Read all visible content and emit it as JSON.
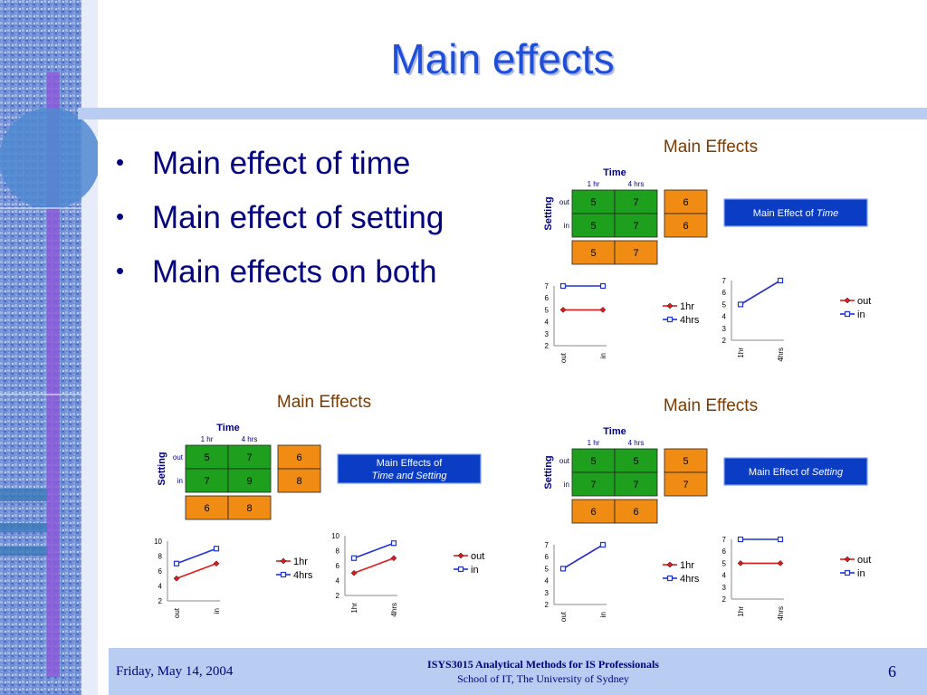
{
  "slide": {
    "title": "Main effects",
    "bullets": [
      "Main effect of time",
      "Main effect of setting",
      "Main effects on both"
    ]
  },
  "colors": {
    "accent_blue": "#1f4fd8",
    "navy": "#000080",
    "cell_green": "#1ea01e",
    "cell_orange": "#f08c14",
    "line_red": "#dd1b1b",
    "line_blue": "#1c32d8",
    "footer_band": "#b9cdf2",
    "banner": "#0a3cc4"
  },
  "panels": [
    {
      "title": "Main Effects",
      "table": {
        "time_label": "Time",
        "setting_label": "Setting",
        "col_labels": [
          "1 hr",
          "4 hrs"
        ],
        "row_labels": [
          "out",
          "in"
        ],
        "cells": [
          [
            "5",
            "7"
          ],
          [
            "5",
            "7"
          ]
        ],
        "row_means": [
          "6",
          "6"
        ],
        "col_means": [
          "5",
          "7"
        ]
      },
      "banner": {
        "text_plain": "Main Effect of ",
        "text_italic": "Time"
      },
      "charts": [
        {
          "type": "line",
          "x": [
            "out",
            "in"
          ],
          "ylim": [
            2,
            7
          ],
          "yticks": [
            2,
            3,
            4,
            5,
            6,
            7
          ],
          "series": [
            {
              "name": "1hr",
              "values": [
                5,
                5
              ],
              "color": "#dd1b1b",
              "marker": "diamond"
            },
            {
              "name": "4hrs",
              "values": [
                7,
                7
              ],
              "color": "#1c32d8",
              "marker": "square"
            }
          ]
        },
        {
          "type": "line",
          "x": [
            "1hr",
            "4hrs"
          ],
          "ylim": [
            2,
            7
          ],
          "yticks": [
            2,
            3,
            4,
            5,
            6,
            7
          ],
          "series": [
            {
              "name": "out",
              "values": [
                5,
                7
              ],
              "color": "#dd1b1b",
              "marker": "diamond"
            },
            {
              "name": "in",
              "values": [
                5,
                7
              ],
              "color": "#1c32d8",
              "marker": "square"
            }
          ]
        }
      ]
    },
    {
      "title": "Main Effects",
      "table": {
        "time_label": "Time",
        "setting_label": "Setting",
        "col_labels": [
          "1 hr",
          "4 hrs"
        ],
        "row_labels": [
          "out",
          "in"
        ],
        "cells": [
          [
            "5",
            "7"
          ],
          [
            "7",
            "9"
          ]
        ],
        "row_means": [
          "6",
          "8"
        ],
        "col_means": [
          "6",
          "8"
        ]
      },
      "banner": {
        "text_plain": "Main Effects of",
        "text_italic": "Time and Setting"
      },
      "charts": [
        {
          "type": "line",
          "x": [
            "out",
            "in"
          ],
          "ylim": [
            2,
            10
          ],
          "yticks": [
            2,
            4,
            6,
            8,
            10
          ],
          "series": [
            {
              "name": "1hr",
              "values": [
                5,
                7
              ],
              "color": "#dd1b1b",
              "marker": "diamond"
            },
            {
              "name": "4hrs",
              "values": [
                7,
                9
              ],
              "color": "#1c32d8",
              "marker": "square"
            }
          ]
        },
        {
          "type": "line",
          "x": [
            "1hr",
            "4hrs"
          ],
          "ylim": [
            2,
            10
          ],
          "yticks": [
            2,
            4,
            6,
            8,
            10
          ],
          "series": [
            {
              "name": "out",
              "values": [
                5,
                7
              ],
              "color": "#dd1b1b",
              "marker": "diamond"
            },
            {
              "name": "in",
              "values": [
                7,
                9
              ],
              "color": "#1c32d8",
              "marker": "square"
            }
          ]
        }
      ]
    },
    {
      "title": "Main Effects",
      "table": {
        "time_label": "Time",
        "setting_label": "Setting",
        "col_labels": [
          "1 hr",
          "4 hrs"
        ],
        "row_labels": [
          "out",
          "in"
        ],
        "cells": [
          [
            "5",
            "5"
          ],
          [
            "7",
            "7"
          ]
        ],
        "row_means": [
          "5",
          "7"
        ],
        "col_means": [
          "6",
          "6"
        ]
      },
      "banner": {
        "text_plain": "Main Effect of ",
        "text_italic": "Setting"
      },
      "charts": [
        {
          "type": "line",
          "x": [
            "out",
            "in"
          ],
          "ylim": [
            2,
            7
          ],
          "yticks": [
            2,
            3,
            4,
            5,
            6,
            7
          ],
          "series": [
            {
              "name": "1hr",
              "values": [
                5,
                7
              ],
              "color": "#dd1b1b",
              "marker": "diamond"
            },
            {
              "name": "4hrs",
              "values": [
                5,
                7
              ],
              "color": "#1c32d8",
              "marker": "square"
            }
          ]
        },
        {
          "type": "line",
          "x": [
            "1hr",
            "4hrs"
          ],
          "ylim": [
            2,
            7
          ],
          "yticks": [
            2,
            3,
            4,
            5,
            6,
            7
          ],
          "series": [
            {
              "name": "out",
              "values": [
                5,
                5
              ],
              "color": "#dd1b1b",
              "marker": "diamond"
            },
            {
              "name": "in",
              "values": [
                7,
                7
              ],
              "color": "#1c32d8",
              "marker": "square"
            }
          ]
        }
      ]
    }
  ],
  "chart_data": [
    {
      "type": "line",
      "x": [
        "out",
        "in"
      ],
      "ylim": [
        2,
        7
      ],
      "series": [
        {
          "name": "1hr",
          "values": [
            5,
            5
          ]
        },
        {
          "name": "4hrs",
          "values": [
            7,
            7
          ]
        }
      ]
    },
    {
      "type": "line",
      "x": [
        "1hr",
        "4hrs"
      ],
      "ylim": [
        2,
        7
      ],
      "series": [
        {
          "name": "out",
          "values": [
            5,
            7
          ]
        },
        {
          "name": "in",
          "values": [
            5,
            7
          ]
        }
      ]
    },
    {
      "type": "line",
      "x": [
        "out",
        "in"
      ],
      "ylim": [
        2,
        10
      ],
      "series": [
        {
          "name": "1hr",
          "values": [
            5,
            7
          ]
        },
        {
          "name": "4hrs",
          "values": [
            7,
            9
          ]
        }
      ]
    },
    {
      "type": "line",
      "x": [
        "1hr",
        "4hrs"
      ],
      "ylim": [
        2,
        10
      ],
      "series": [
        {
          "name": "out",
          "values": [
            5,
            7
          ]
        },
        {
          "name": "in",
          "values": [
            7,
            9
          ]
        }
      ]
    },
    {
      "type": "line",
      "x": [
        "out",
        "in"
      ],
      "ylim": [
        2,
        7
      ],
      "series": [
        {
          "name": "1hr",
          "values": [
            5,
            7
          ]
        },
        {
          "name": "4hrs",
          "values": [
            5,
            7
          ]
        }
      ]
    },
    {
      "type": "line",
      "x": [
        "1hr",
        "4hrs"
      ],
      "ylim": [
        2,
        7
      ],
      "series": [
        {
          "name": "out",
          "values": [
            5,
            5
          ]
        },
        {
          "name": "in",
          "values": [
            7,
            7
          ]
        }
      ]
    }
  ],
  "footer": {
    "date": "Friday, May 14, 2004",
    "course": "ISYS3015 Analytical Methods for IS Professionals",
    "school": "School of IT, The University of Sydney",
    "page": "6"
  }
}
